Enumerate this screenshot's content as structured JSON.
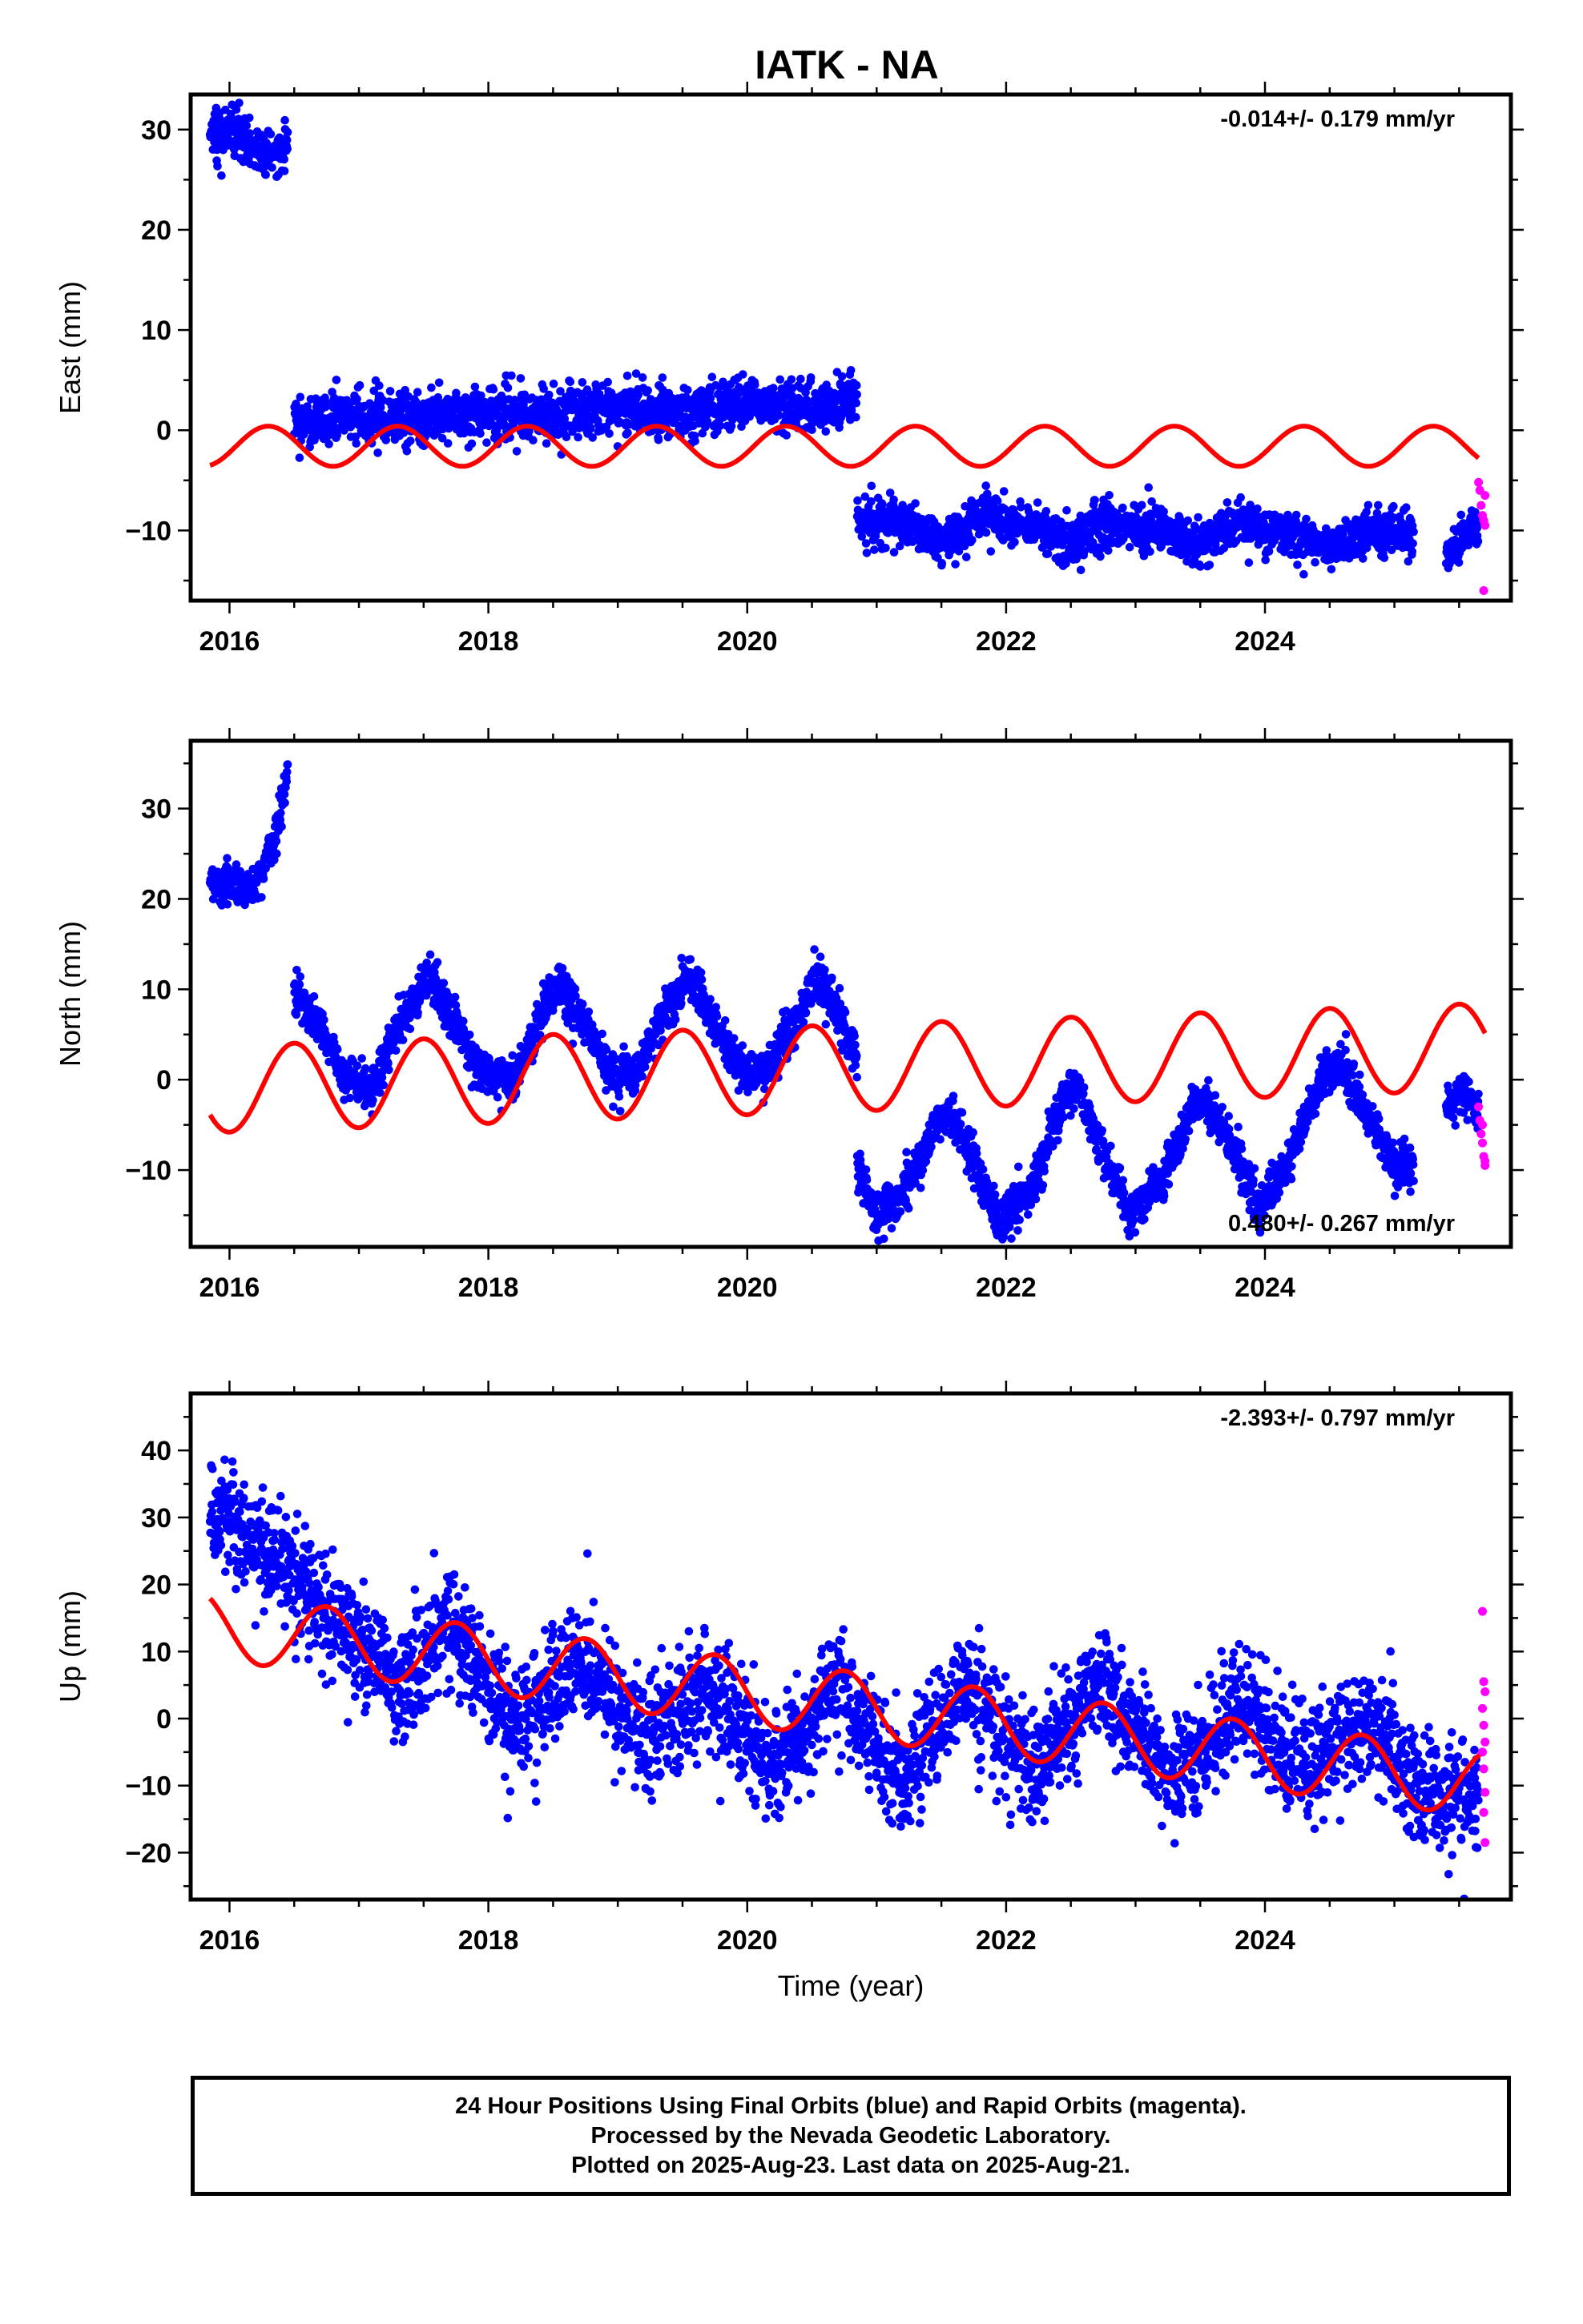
{
  "title": "IATK - NA",
  "colors": {
    "final_orbits": "#0000ff",
    "rapid_orbits": "#ff00ff",
    "model_fit": "#ff0000",
    "frame": "#000000"
  },
  "footer": {
    "line1": "24 Hour Positions Using Final Orbits (blue) and Rapid Orbits (magenta).",
    "line2": "Processed by the Nevada Geodetic Laboratory.",
    "line3": "Plotted on 2025-Aug-23. Last data on 2025-Aug-21."
  },
  "chart_data": [
    {
      "type": "scatter",
      "ylabel": "East (mm)",
      "xlabel": "",
      "rate": "-0.014+/- 0.179 mm/yr",
      "rate_position": "top-right",
      "xlim": [
        2015.7,
        2025.9
      ],
      "ylim": [
        -17,
        33.5
      ],
      "xticks": [
        2016,
        2018,
        2020,
        2022,
        2024
      ],
      "yticks": [
        -10,
        0,
        10,
        20,
        30
      ],
      "ytick_labels": [
        "−10",
        "0",
        "10",
        "20",
        "30"
      ],
      "final_orbits": {
        "color": "blue",
        "segments": [
          {
            "t": [
              2015.85,
              2016.45
            ],
            "points": [
              [
                2015.85,
                29.5
              ],
              [
                2016.0,
                29.8
              ],
              [
                2016.15,
                28.0
              ],
              [
                2016.3,
                27.5
              ],
              [
                2016.45,
                28.8
              ]
            ],
            "noise": 1.3
          },
          {
            "t": [
              2016.5,
              2020.85
            ],
            "points": [
              [
                2016.5,
                0.5
              ],
              [
                2017.0,
                1.5
              ],
              [
                2017.5,
                1.0
              ],
              [
                2018.0,
                2.0
              ],
              [
                2018.5,
                1.5
              ],
              [
                2019.0,
                2.5
              ],
              [
                2019.5,
                1.5
              ],
              [
                2020.0,
                3.0
              ],
              [
                2020.5,
                2.0
              ],
              [
                2020.85,
                3.5
              ]
            ],
            "noise": 1.3
          },
          {
            "t": [
              2020.85,
              2025.15
            ],
            "points": [
              [
                2020.85,
                -9.0
              ],
              [
                2021.2,
                -9.5
              ],
              [
                2021.5,
                -11.0
              ],
              [
                2021.8,
                -8.5
              ],
              [
                2022.2,
                -9.5
              ],
              [
                2022.5,
                -11.0
              ],
              [
                2022.8,
                -9.5
              ],
              [
                2023.2,
                -10.0
              ],
              [
                2023.5,
                -11.5
              ],
              [
                2023.8,
                -9.0
              ],
              [
                2024.2,
                -10.5
              ],
              [
                2024.5,
                -12.0
              ],
              [
                2024.8,
                -10.0
              ],
              [
                2025.15,
                -10.5
              ]
            ],
            "noise": 1.1
          },
          {
            "t": [
              2025.4,
              2025.65
            ],
            "points": [
              [
                2025.4,
                -12.5
              ],
              [
                2025.5,
                -11.5
              ],
              [
                2025.65,
                -9.0
              ]
            ],
            "noise": 1.0
          }
        ]
      },
      "rapid_orbits": {
        "color": "magenta",
        "points": [
          [
            2025.65,
            -5.2
          ],
          [
            2025.66,
            -6.0
          ],
          [
            2025.67,
            -7.5
          ],
          [
            2025.68,
            -8.5
          ],
          [
            2025.69,
            -9.0
          ],
          [
            2025.7,
            -9.5
          ],
          [
            2025.7,
            -6.5
          ],
          [
            2025.69,
            -16.0
          ]
        ]
      },
      "model": {
        "color": "red",
        "segments": [
          {
            "t": [
              2015.85,
              2020.85
            ],
            "offset": -1.6,
            "slope": 0.0,
            "t0": 2016.0,
            "amp": 2.0,
            "phase_peak": 0.3
          },
          {
            "t": [
              2020.85,
              2025.65
            ],
            "offset": -1.6,
            "slope": 0.0,
            "t0": 2016.0,
            "amp": 2.0,
            "phase_peak": 0.3
          }
        ]
      }
    },
    {
      "type": "scatter",
      "ylabel": "North (mm)",
      "xlabel": "",
      "rate": "0.480+/- 0.267 mm/yr",
      "rate_position": "bottom-right",
      "xlim": [
        2015.7,
        2025.9
      ],
      "ylim": [
        -18.5,
        37.5
      ],
      "xticks": [
        2016,
        2018,
        2020,
        2022,
        2024
      ],
      "yticks": [
        -10,
        0,
        10,
        20,
        30
      ],
      "ytick_labels": [
        "−10",
        "0",
        "10",
        "20",
        "30"
      ],
      "final_orbits": {
        "color": "blue",
        "segments": [
          {
            "t": [
              2015.85,
              2016.45
            ],
            "points": [
              [
                2015.85,
                22.0
              ],
              [
                2016.0,
                21.5
              ],
              [
                2016.15,
                21.0
              ],
              [
                2016.25,
                23.0
              ],
              [
                2016.35,
                27.0
              ],
              [
                2016.45,
                34.0
              ]
            ],
            "noise": 1.2
          },
          {
            "t": [
              2016.5,
              2020.85
            ],
            "points": [
              [
                2016.5,
                9.5
              ],
              [
                2016.7,
                6.0
              ],
              [
                2016.9,
                0.0
              ],
              [
                2017.1,
                -1.0
              ],
              [
                2017.3,
                6.0
              ],
              [
                2017.55,
                11.5
              ],
              [
                2017.75,
                6.0
              ],
              [
                2017.95,
                1.0
              ],
              [
                2018.2,
                -0.5
              ],
              [
                2018.45,
                8.0
              ],
              [
                2018.55,
                10.5
              ],
              [
                2018.75,
                6.0
              ],
              [
                2018.95,
                0.5
              ],
              [
                2019.15,
                1.0
              ],
              [
                2019.35,
                7.0
              ],
              [
                2019.55,
                11.5
              ],
              [
                2019.75,
                6.0
              ],
              [
                2019.95,
                1.0
              ],
              [
                2020.15,
                1.0
              ],
              [
                2020.35,
                6.0
              ],
              [
                2020.55,
                11.5
              ],
              [
                2020.75,
                6.0
              ],
              [
                2020.85,
                2.0
              ]
            ],
            "noise": 1.2
          },
          {
            "t": [
              2020.85,
              2025.15
            ],
            "points": [
              [
                2020.85,
                -10.0
              ],
              [
                2021.0,
                -15.0
              ],
              [
                2021.2,
                -13.0
              ],
              [
                2021.4,
                -7.0
              ],
              [
                2021.55,
                -3.0
              ],
              [
                2021.75,
                -9.0
              ],
              [
                2021.95,
                -16.0
              ],
              [
                2022.2,
                -12.0
              ],
              [
                2022.45,
                -2.0
              ],
              [
                2022.55,
                -1.0
              ],
              [
                2022.75,
                -8.0
              ],
              [
                2022.95,
                -15.0
              ],
              [
                2023.2,
                -11.0
              ],
              [
                2023.45,
                -3.0
              ],
              [
                2023.55,
                -2.0
              ],
              [
                2023.75,
                -8.0
              ],
              [
                2023.95,
                -14.0
              ],
              [
                2024.2,
                -9.0
              ],
              [
                2024.45,
                1.0
              ],
              [
                2024.6,
                1.5
              ],
              [
                2024.8,
                -4.0
              ],
              [
                2025.0,
                -9.0
              ],
              [
                2025.15,
                -9.5
              ]
            ],
            "noise": 1.2
          },
          {
            "t": [
              2025.4,
              2025.65
            ],
            "points": [
              [
                2025.4,
                -3.0
              ],
              [
                2025.52,
                -1.5
              ],
              [
                2025.65,
                -4.0
              ]
            ],
            "noise": 1.0
          }
        ]
      },
      "rapid_orbits": {
        "color": "magenta",
        "points": [
          [
            2025.65,
            -3.0
          ],
          [
            2025.66,
            -4.5
          ],
          [
            2025.67,
            -6.0
          ],
          [
            2025.68,
            -7.0
          ],
          [
            2025.69,
            -8.5
          ],
          [
            2025.7,
            -9.0
          ],
          [
            2025.7,
            -9.5
          ],
          [
            2025.68,
            -5.0
          ]
        ]
      },
      "model": {
        "color": "red",
        "segments": [
          {
            "t": [
              2015.85,
              2025.7
            ],
            "offset": -1.0,
            "slope": 0.48,
            "t0": 2016.0,
            "amp": 4.8,
            "phase_peak": 0.5
          }
        ]
      }
    },
    {
      "type": "scatter",
      "ylabel": "Up (mm)",
      "xlabel": "Time (year)",
      "rate": "-2.393+/- 0.797 mm/yr",
      "rate_position": "top-right",
      "xlim": [
        2015.7,
        2025.9
      ],
      "ylim": [
        -27,
        48.5
      ],
      "xticks": [
        2016,
        2018,
        2020,
        2022,
        2024
      ],
      "yticks": [
        -20,
        -10,
        0,
        10,
        20,
        30,
        40
      ],
      "ytick_labels": [
        "−20",
        "−10",
        "0",
        "10",
        "20",
        "30",
        "40"
      ],
      "final_orbits": {
        "color": "blue",
        "segments": [
          {
            "t": [
              2015.85,
              2025.65
            ],
            "points": [
              [
                2015.85,
                32.0
              ],
              [
                2016.2,
                26.0
              ],
              [
                2016.5,
                22.0
              ],
              [
                2016.75,
                16.0
              ],
              [
                2017.0,
                12.0
              ],
              [
                2017.3,
                4.0
              ],
              [
                2017.7,
                14.0
              ],
              [
                2018.2,
                -2.0
              ],
              [
                2018.7,
                9.0
              ],
              [
                2019.2,
                -3.0
              ],
              [
                2019.7,
                5.0
              ],
              [
                2020.2,
                -7.0
              ],
              [
                2020.7,
                5.0
              ],
              [
                2021.2,
                -10.0
              ],
              [
                2021.7,
                6.0
              ],
              [
                2022.2,
                -8.0
              ],
              [
                2022.75,
                6.0
              ],
              [
                2023.3,
                -10.0
              ],
              [
                2023.8,
                2.0
              ],
              [
                2024.3,
                -8.0
              ],
              [
                2024.8,
                0.0
              ],
              [
                2025.2,
                -10.0
              ],
              [
                2025.5,
                -12.0
              ],
              [
                2025.65,
                -12.0
              ]
            ],
            "noise": 4.2
          }
        ]
      },
      "rapid_orbits": {
        "color": "magenta",
        "points": [
          [
            2025.68,
            16.0
          ],
          [
            2025.69,
            5.5
          ],
          [
            2025.7,
            4.0
          ],
          [
            2025.68,
            1.5
          ],
          [
            2025.69,
            -1.0
          ],
          [
            2025.7,
            -3.5
          ],
          [
            2025.68,
            -5.0
          ],
          [
            2025.69,
            -7.5
          ],
          [
            2025.7,
            -11.0
          ],
          [
            2025.69,
            -14.0
          ],
          [
            2025.7,
            -18.5
          ]
        ]
      },
      "model": {
        "color": "red",
        "segments": [
          {
            "t": [
              2015.85,
              2025.7
            ],
            "offset": 13.5,
            "slope": -2.393,
            "t0": 2016.0,
            "amp": 5.0,
            "phase_peak": 0.75
          }
        ]
      }
    }
  ]
}
